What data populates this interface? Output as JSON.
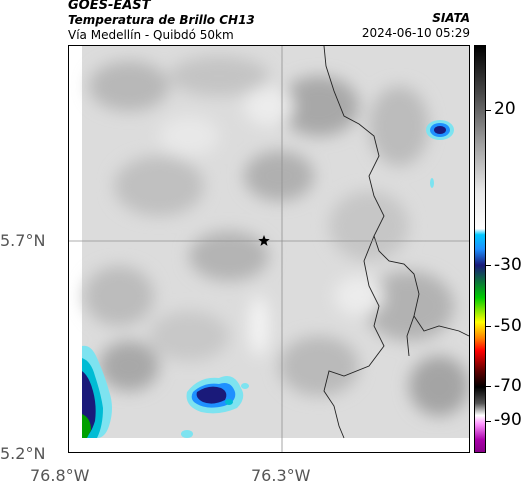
{
  "header": {
    "satellite": "GOES-EAST",
    "product": "Temperatura de Brillo CH13",
    "location": "Vía Medellín - Quibdó 50km",
    "organization": "SIATA",
    "timestamp": "2024-06-10 05:29"
  },
  "map": {
    "latitude_labels": [
      "5.7°N",
      "5.2°N"
    ],
    "longitude_labels": [
      "76.8°W",
      "76.3°W"
    ],
    "marker_icon": "star-icon",
    "background_color": "#dcdcdc",
    "cold_cloud_colors": [
      "#1a1a7a",
      "#1e90ff",
      "#00bcd4",
      "#7de3f0",
      "#00a000"
    ]
  },
  "colorbar": {
    "tick_labels": [
      "20",
      "-30",
      "-50",
      "-70",
      "-90"
    ],
    "gradient_colors": [
      "#000000",
      "#ffffff",
      "#00c8ff",
      "#1a1a7a",
      "#00cc00",
      "#ffff00",
      "#ff0000",
      "#000000",
      "#ffffff",
      "#aa00aa"
    ]
  }
}
